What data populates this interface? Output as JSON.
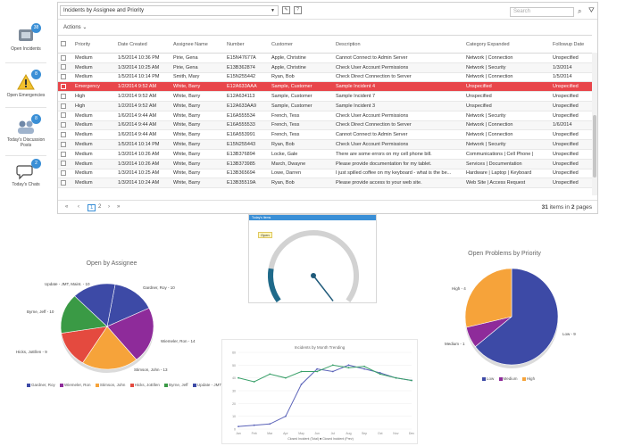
{
  "sidebar": {
    "items": [
      {
        "label": "Open Incidents",
        "badge": "38"
      },
      {
        "label": "Open Emergencies",
        "badge": "8"
      },
      {
        "label": "Today's Discussion Posts",
        "badge": "8"
      },
      {
        "label": "Today's Chats",
        "badge": "2"
      }
    ]
  },
  "toolbar": {
    "view_title": "Incidents by Assignee and Priority",
    "search_placeholder": "Search",
    "actions_label": "Actions"
  },
  "grid": {
    "columns": [
      "Priority",
      "Date Created",
      "Assignee Name",
      "Number",
      "Customer",
      "Description",
      "Category Expanded",
      "Followup Date"
    ],
    "rows": [
      {
        "priority": "Medium",
        "date": "1/5/2014 10:36 PM",
        "assignee": "Pirie, Gena",
        "number": "E15N47677A",
        "customer": "Apple, Christine",
        "description": "Cannot Connect to Admin Server",
        "category": "Network | Connection",
        "followup": "Unspecified"
      },
      {
        "priority": "Medium",
        "date": "1/3/2014 10:25 AM",
        "assignee": "Pirie, Gena",
        "number": "E13B362874",
        "customer": "Apple, Christine",
        "description": "Check User Account Permissions",
        "category": "Network | Security",
        "followup": "1/3/2014"
      },
      {
        "priority": "Medium",
        "date": "1/5/2014 10:14 PM",
        "assignee": "Smith, Mary",
        "number": "E15N255442",
        "customer": "Ryan, Bob",
        "description": "Check Direct Connection to Server",
        "category": "Network | Connection",
        "followup": "1/5/2014"
      },
      {
        "priority": "Emergency",
        "date": "1/2/2014 9:52 AM",
        "assignee": "White, Barry",
        "number": "E12A633AAA",
        "customer": "Sample, Customer",
        "description": "Sample Incident 4",
        "category": "Unspecified",
        "followup": "Unspecified"
      },
      {
        "priority": "High",
        "date": "1/2/2014 9:52 AM",
        "assignee": "White, Barry",
        "number": "E12A634113",
        "customer": "Sample, Customer",
        "description": "Sample Incident 7",
        "category": "Unspecified",
        "followup": "Unspecified"
      },
      {
        "priority": "High",
        "date": "1/2/2014 9:52 AM",
        "assignee": "White, Barry",
        "number": "E12A633AA9",
        "customer": "Sample, Customer",
        "description": "Sample Incident 3",
        "category": "Unspecified",
        "followup": "Unspecified"
      },
      {
        "priority": "Medium",
        "date": "1/6/2014 9:44 AM",
        "assignee": "White, Barry",
        "number": "E16A555534",
        "customer": "French, Tess",
        "description": "Check User Account Permissions",
        "category": "Network | Security",
        "followup": "Unspecified"
      },
      {
        "priority": "Medium",
        "date": "1/6/2014 9:44 AM",
        "assignee": "White, Barry",
        "number": "E16A555533",
        "customer": "French, Tess",
        "description": "Check Direct Connection to Server",
        "category": "Network | Connection",
        "followup": "1/6/2014"
      },
      {
        "priority": "Medium",
        "date": "1/6/2014 9:44 AM",
        "assignee": "White, Barry",
        "number": "E16A553991",
        "customer": "French, Tess",
        "description": "Cannot Connect to Admin Server",
        "category": "Network | Connection",
        "followup": "Unspecified"
      },
      {
        "priority": "Medium",
        "date": "1/5/2014 10:14 PM",
        "assignee": "White, Barry",
        "number": "E15N255443",
        "customer": "Ryan, Bob",
        "description": "Check User Account Permissions",
        "category": "Network | Security",
        "followup": "Unspecified"
      },
      {
        "priority": "Medium",
        "date": "1/3/2014 10:26 AM",
        "assignee": "White, Barry",
        "number": "E13B376894",
        "customer": "Locke, Gale",
        "description": "There are some errors on my cell phone bill.",
        "category": "Communications | Cell Phone |",
        "followup": "Unspecified"
      },
      {
        "priority": "Medium",
        "date": "1/3/2014 10:26 AM",
        "assignee": "White, Barry",
        "number": "E13B373985",
        "customer": "March, Dwayne",
        "description": "Please provide documentation for my tablet.",
        "category": "Services | Documentation",
        "followup": "Unspecified"
      },
      {
        "priority": "Medium",
        "date": "1/3/2014 10:25 AM",
        "assignee": "White, Barry",
        "number": "E13B365694",
        "customer": "Lowe, Darren",
        "description": "I just spilled coffee on my keyboard - what is the be...",
        "category": "Hardware | Laptop | Keyboard",
        "followup": "Unspecified"
      },
      {
        "priority": "Medium",
        "date": "1/3/2014 10:24 AM",
        "assignee": "White, Barry",
        "number": "E13B35519A",
        "customer": "Ryan, Bob",
        "description": "Please provide access to your web site.",
        "category": "Web Site | Access Request",
        "followup": "Unspecified"
      }
    ]
  },
  "pager": {
    "pages": [
      "1",
      "2"
    ],
    "total_items": "31",
    "items_in": "items in",
    "total_pages": "2",
    "pages_label": "pages"
  },
  "gauge": {
    "header": "Today's Items",
    "bubble": "Open",
    "value_fraction": 0.35
  },
  "colors": {
    "highlight": "#e8464b",
    "accent": "#3a8fd6",
    "pie_blue": "#3d4aa6",
    "pie_purple": "#8e2b9a",
    "pie_orange": "#f6a33a",
    "pie_red": "#e44a3f",
    "pie_green": "#3a9a45",
    "line_green": "#3aa06a",
    "line_blue": "#5a62b8"
  },
  "chart_data": [
    {
      "type": "pie",
      "title": "Open by Assignee",
      "slices": [
        {
          "label": "Gardner, Roy - 10",
          "value": 10,
          "legend": "Gardner, Roy"
        },
        {
          "label": "Wiemeler, Ron - 14",
          "value": 14,
          "legend": "Wiemeler, Ron"
        },
        {
          "label": "Stimson, John - 13",
          "value": 13,
          "legend": "Stimson, John"
        },
        {
          "label": "Hicks, JoEllen - 9",
          "value": 9,
          "legend": "Hicks, JoEllen"
        },
        {
          "label": "Byrne, Jeff - 10",
          "value": 10,
          "legend": "Byrne, Jeff"
        },
        {
          "label": "Update - JMT, Maint. - 10",
          "value": 10,
          "legend": "Update - JMT, Maint."
        }
      ]
    },
    {
      "type": "pie",
      "title": "Open Problems by Priority",
      "slices": [
        {
          "label": "Low - 9",
          "value": 9,
          "legend": "Low"
        },
        {
          "label": "Medium - 1",
          "value": 1,
          "legend": "Medium"
        },
        {
          "label": "High - 4",
          "value": 4,
          "legend": "High"
        }
      ]
    },
    {
      "type": "line",
      "title": "Incidents by Month Trending",
      "categories": [
        "Jan",
        "Feb",
        "Mar",
        "Apr",
        "May",
        "Jun",
        "Jul",
        "Aug",
        "Sep",
        "Oct",
        "Nov",
        "Dec"
      ],
      "ylim": [
        0,
        60
      ],
      "series": [
        {
          "name": "Closed Incident (Total)",
          "values": [
            2,
            3,
            4,
            10,
            35,
            47,
            45,
            50,
            47,
            44,
            40,
            38
          ]
        },
        {
          "name": "Closed Incident (Prev)",
          "values": [
            40,
            37,
            43,
            40,
            45,
            45,
            50,
            48,
            49,
            43,
            40,
            38
          ]
        }
      ],
      "legend_text": "Closed Incident (Total) ■ Closed Incident (Prev)"
    }
  ]
}
